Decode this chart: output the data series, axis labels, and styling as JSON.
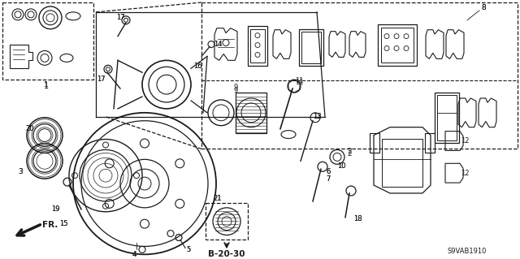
{
  "bg_color": "#ffffff",
  "line_color": "#1a1a1a",
  "fig_width": 6.4,
  "fig_height": 3.19,
  "dpi": 100,
  "ref_code": "S9VAB1910",
  "page_ref": "B-20-30"
}
